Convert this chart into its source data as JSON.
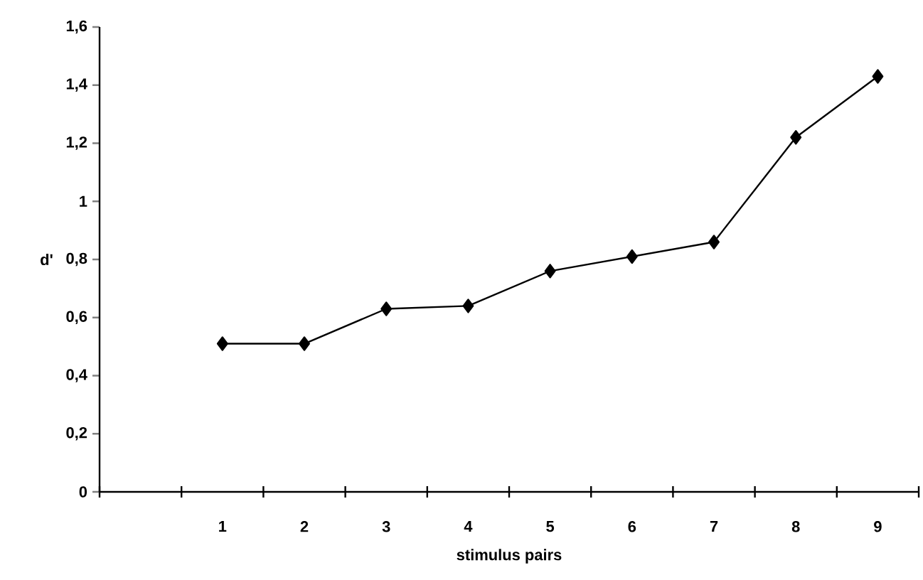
{
  "chart_data": {
    "type": "line",
    "xlabel": "stimulus pairs",
    "ylabel": "d'",
    "categories": [
      null,
      "1",
      "2",
      "3",
      "4",
      "5",
      "6",
      "7",
      "8",
      "9"
    ],
    "values": [
      null,
      0.51,
      0.51,
      0.63,
      0.64,
      0.76,
      0.81,
      0.86,
      1.22,
      1.43
    ],
    "color": "#000000",
    "marker": "diamond",
    "line_style": "solid",
    "ylim": [
      0,
      1.6
    ],
    "yticks": [
      0,
      {
        "value": 0.2,
        "label": "0,2"
      },
      {
        "value": 0.4,
        "label": "0,4"
      },
      {
        "value": 0.6,
        "label": "0,6"
      },
      {
        "value": 0.8,
        "label": "0,8"
      },
      1,
      {
        "value": 1.2,
        "label": "1,2"
      },
      {
        "value": 1.4,
        "label": "1,4"
      },
      {
        "value": 1.6,
        "label": "1,6"
      }
    ]
  }
}
